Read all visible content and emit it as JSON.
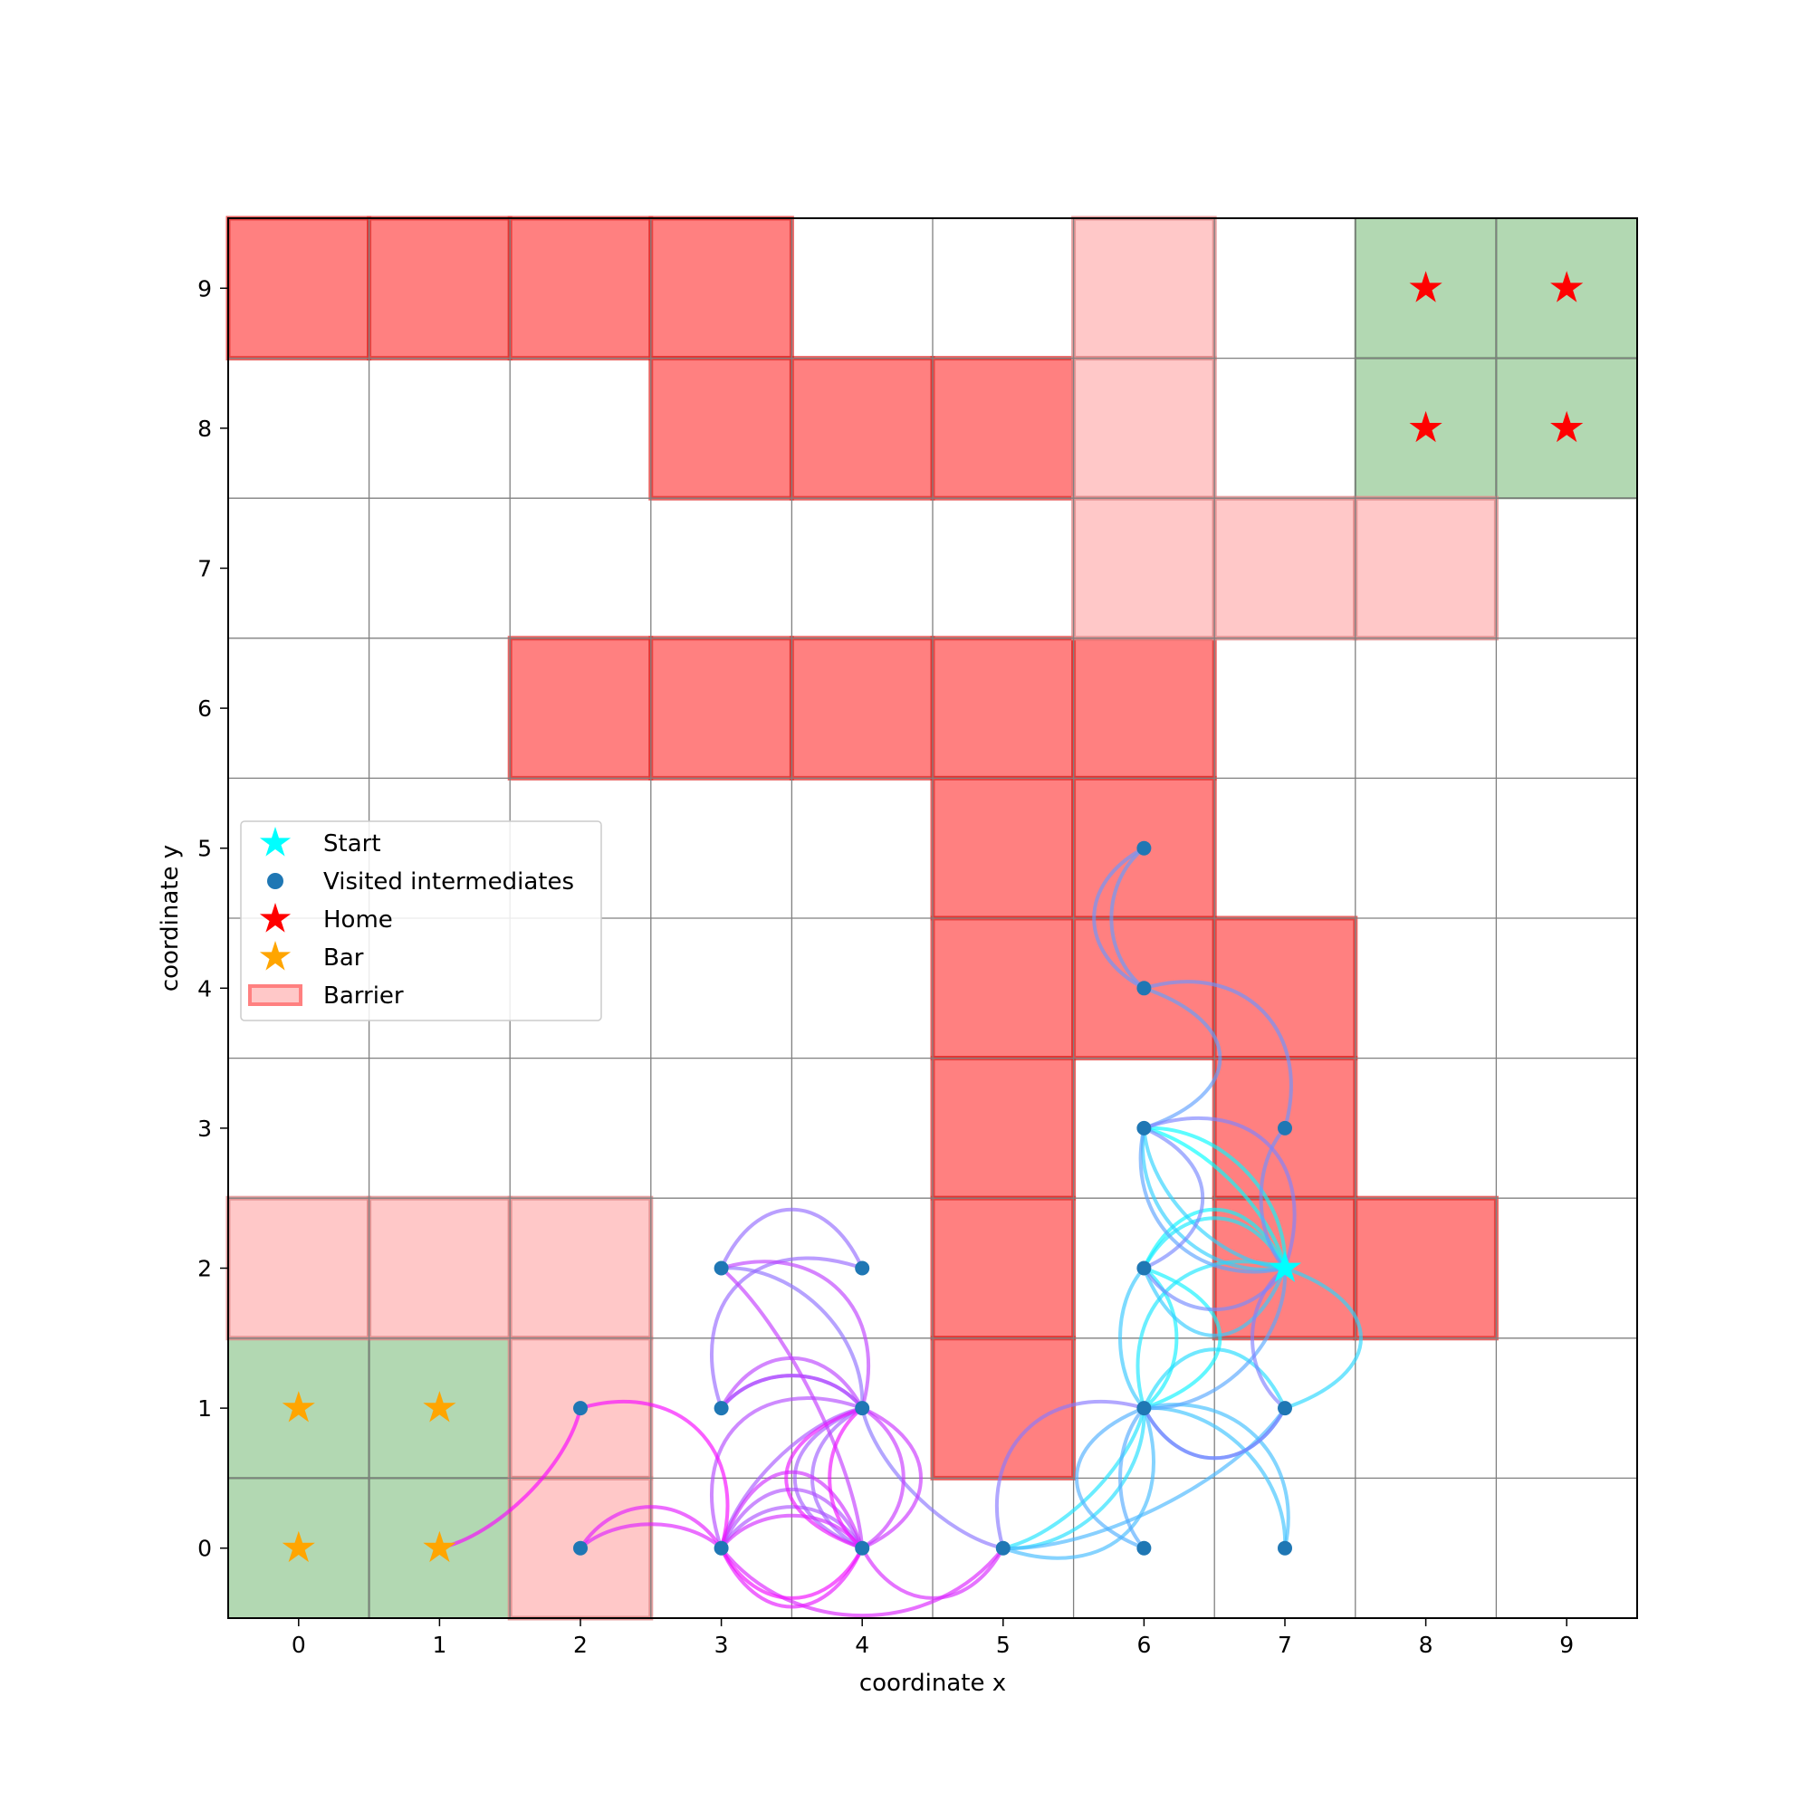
{
  "chart_data": {
    "type": "scatter",
    "title": "",
    "xlabel": "coordinate x",
    "ylabel": "coordinate y",
    "xlim": [
      -0.5,
      9.5
    ],
    "ylim": [
      -0.5,
      9.5
    ],
    "grid": true,
    "x_ticks": [
      "0",
      "1",
      "2",
      "3",
      "4",
      "5",
      "6",
      "7",
      "8",
      "9"
    ],
    "y_ticks": [
      "0",
      "1",
      "2",
      "3",
      "4",
      "5",
      "6",
      "7",
      "8",
      "9"
    ],
    "legend": {
      "placement": "center-left",
      "entries": [
        {
          "label": "Start",
          "marker": "star",
          "color": "#00ffff"
        },
        {
          "label": "Visited intermediates",
          "marker": "circle",
          "color": "#1f77b4"
        },
        {
          "label": "Home",
          "marker": "star",
          "color": "#ff0000"
        },
        {
          "label": "Bar",
          "marker": "star",
          "color": "#ffa500"
        },
        {
          "label": "Barrier",
          "marker": "rect",
          "color": "#ff8080"
        }
      ]
    },
    "zones_green": [
      [
        8,
        9
      ],
      [
        9,
        9
      ],
      [
        8,
        8
      ],
      [
        9,
        8
      ],
      [
        0,
        1
      ],
      [
        1,
        1
      ],
      [
        0,
        0
      ],
      [
        1,
        0
      ]
    ],
    "barriers_strong": [
      [
        0,
        9
      ],
      [
        1,
        9
      ],
      [
        2,
        9
      ],
      [
        3,
        9
      ],
      [
        3,
        8
      ],
      [
        4,
        8
      ],
      [
        5,
        8
      ],
      [
        2,
        6
      ],
      [
        3,
        6
      ],
      [
        4,
        6
      ],
      [
        5,
        6
      ],
      [
        5,
        5
      ],
      [
        5,
        4
      ],
      [
        5,
        3
      ],
      [
        5,
        2
      ],
      [
        5,
        1
      ],
      [
        6,
        6
      ],
      [
        6,
        5
      ],
      [
        6,
        4
      ],
      [
        7,
        4
      ],
      [
        7,
        3
      ],
      [
        7,
        2
      ],
      [
        8,
        2
      ]
    ],
    "barriers_light": [
      [
        6,
        9
      ],
      [
        6,
        8
      ],
      [
        6,
        7
      ],
      [
        7,
        7
      ],
      [
        8,
        7
      ],
      [
        0,
        2
      ],
      [
        1,
        2
      ],
      [
        2,
        2
      ],
      [
        2,
        1
      ],
      [
        2,
        0
      ]
    ],
    "start": [
      7,
      2
    ],
    "homes": [
      [
        8,
        9
      ],
      [
        9,
        9
      ],
      [
        8,
        8
      ],
      [
        9,
        8
      ]
    ],
    "bars": [
      [
        0,
        1
      ],
      [
        1,
        1
      ],
      [
        0,
        0
      ],
      [
        1,
        0
      ]
    ],
    "visited": [
      [
        6,
        5
      ],
      [
        6,
        4
      ],
      [
        6,
        3
      ],
      [
        7,
        3
      ],
      [
        3,
        2
      ],
      [
        4,
        2
      ],
      [
        6,
        2
      ],
      [
        3,
        1
      ],
      [
        4,
        1
      ],
      [
        6,
        1
      ],
      [
        7,
        1
      ],
      [
        2,
        1
      ],
      [
        2,
        0
      ],
      [
        3,
        0
      ],
      [
        4,
        0
      ],
      [
        5,
        0
      ],
      [
        6,
        0
      ],
      [
        7,
        0
      ]
    ],
    "path": [
      [
        7,
        2
      ],
      [
        6,
        3
      ],
      [
        7,
        2
      ],
      [
        6,
        2
      ],
      [
        6,
        1
      ],
      [
        6,
        2
      ],
      [
        7,
        2
      ],
      [
        6,
        1
      ],
      [
        5,
        0
      ],
      [
        6,
        1
      ],
      [
        7,
        1
      ],
      [
        7,
        2
      ],
      [
        6,
        3
      ],
      [
        7,
        2
      ],
      [
        6,
        2
      ],
      [
        6,
        1
      ],
      [
        7,
        0
      ],
      [
        6,
        1
      ],
      [
        5,
        0
      ],
      [
        7,
        1
      ],
      [
        6,
        1
      ],
      [
        6,
        0
      ],
      [
        6,
        1
      ],
      [
        7,
        2
      ],
      [
        6,
        3
      ],
      [
        6,
        4
      ],
      [
        6,
        5
      ],
      [
        6,
        4
      ],
      [
        7,
        3
      ],
      [
        7,
        2
      ],
      [
        6,
        2
      ],
      [
        6,
        3
      ],
      [
        7,
        2
      ],
      [
        7,
        1
      ],
      [
        6,
        1
      ],
      [
        5,
        0
      ],
      [
        4,
        1
      ],
      [
        3,
        2
      ],
      [
        4,
        2
      ],
      [
        3,
        1
      ],
      [
        4,
        1
      ],
      [
        4,
        0
      ],
      [
        4,
        1
      ],
      [
        3,
        0
      ],
      [
        4,
        0
      ],
      [
        3,
        0
      ],
      [
        4,
        1
      ],
      [
        3,
        1
      ],
      [
        4,
        1
      ],
      [
        3,
        2
      ],
      [
        4,
        0
      ],
      [
        4,
        1
      ],
      [
        4,
        0
      ],
      [
        3,
        0
      ],
      [
        4,
        0
      ],
      [
        5,
        0
      ],
      [
        3,
        0
      ],
      [
        2,
        0
      ],
      [
        3,
        0
      ],
      [
        4,
        0
      ],
      [
        4,
        1
      ],
      [
        4,
        0
      ],
      [
        3,
        0
      ],
      [
        2,
        1
      ],
      [
        1,
        0
      ]
    ]
  }
}
